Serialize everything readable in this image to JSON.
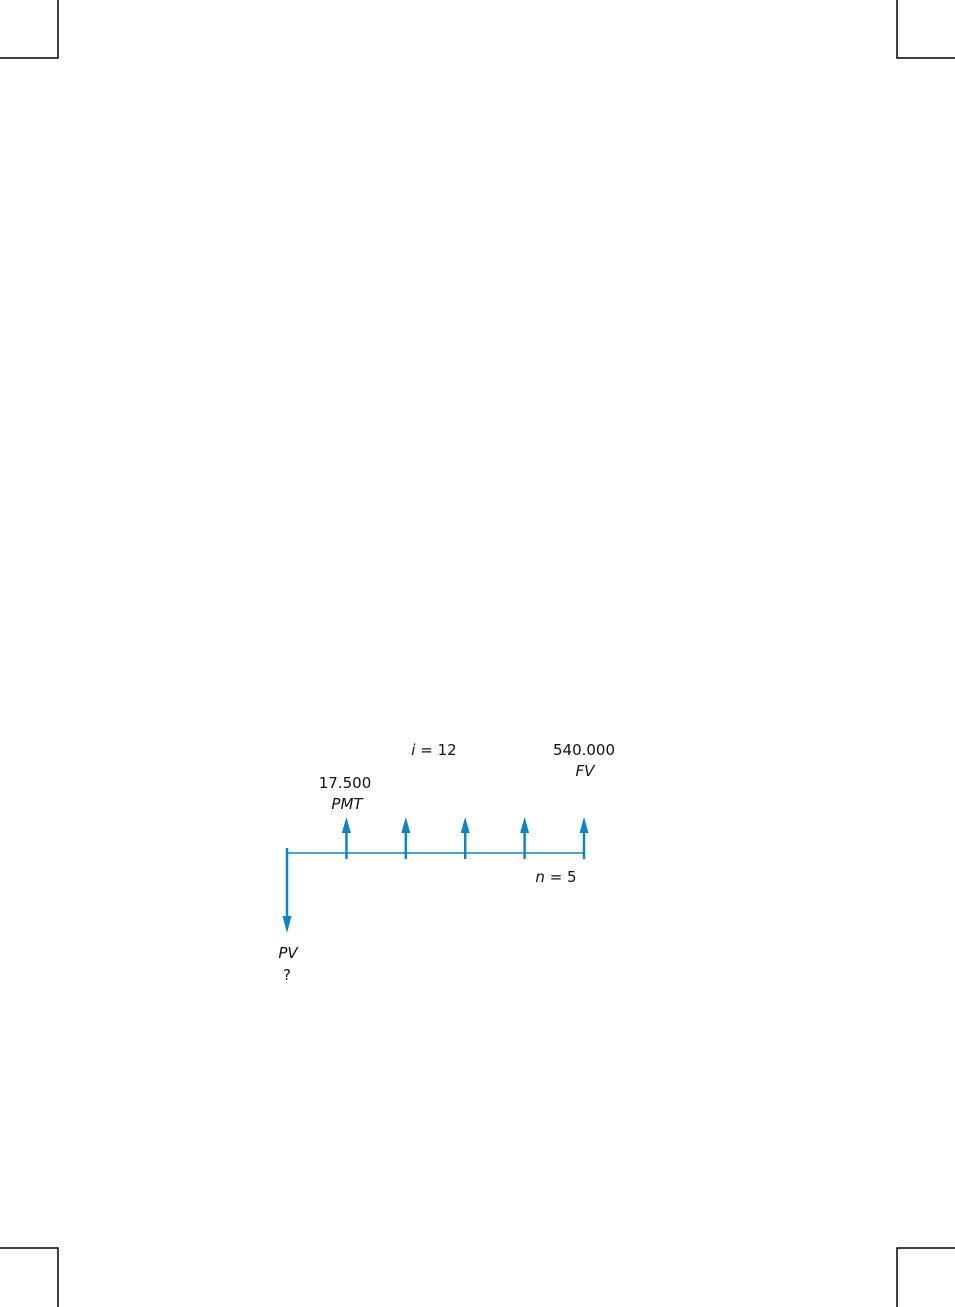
{
  "diagram": {
    "accent_color": "#0a86c8",
    "interest": {
      "symbol": "i",
      "value": "= 12"
    },
    "periods": {
      "symbol": "n",
      "value": "= 5"
    },
    "payment": {
      "amount": "17.500",
      "label": "PMT"
    },
    "future_value": {
      "amount": "540.000",
      "label": "FV"
    },
    "present_value": {
      "label": "PV",
      "amount": "?"
    },
    "period_count": 5
  }
}
